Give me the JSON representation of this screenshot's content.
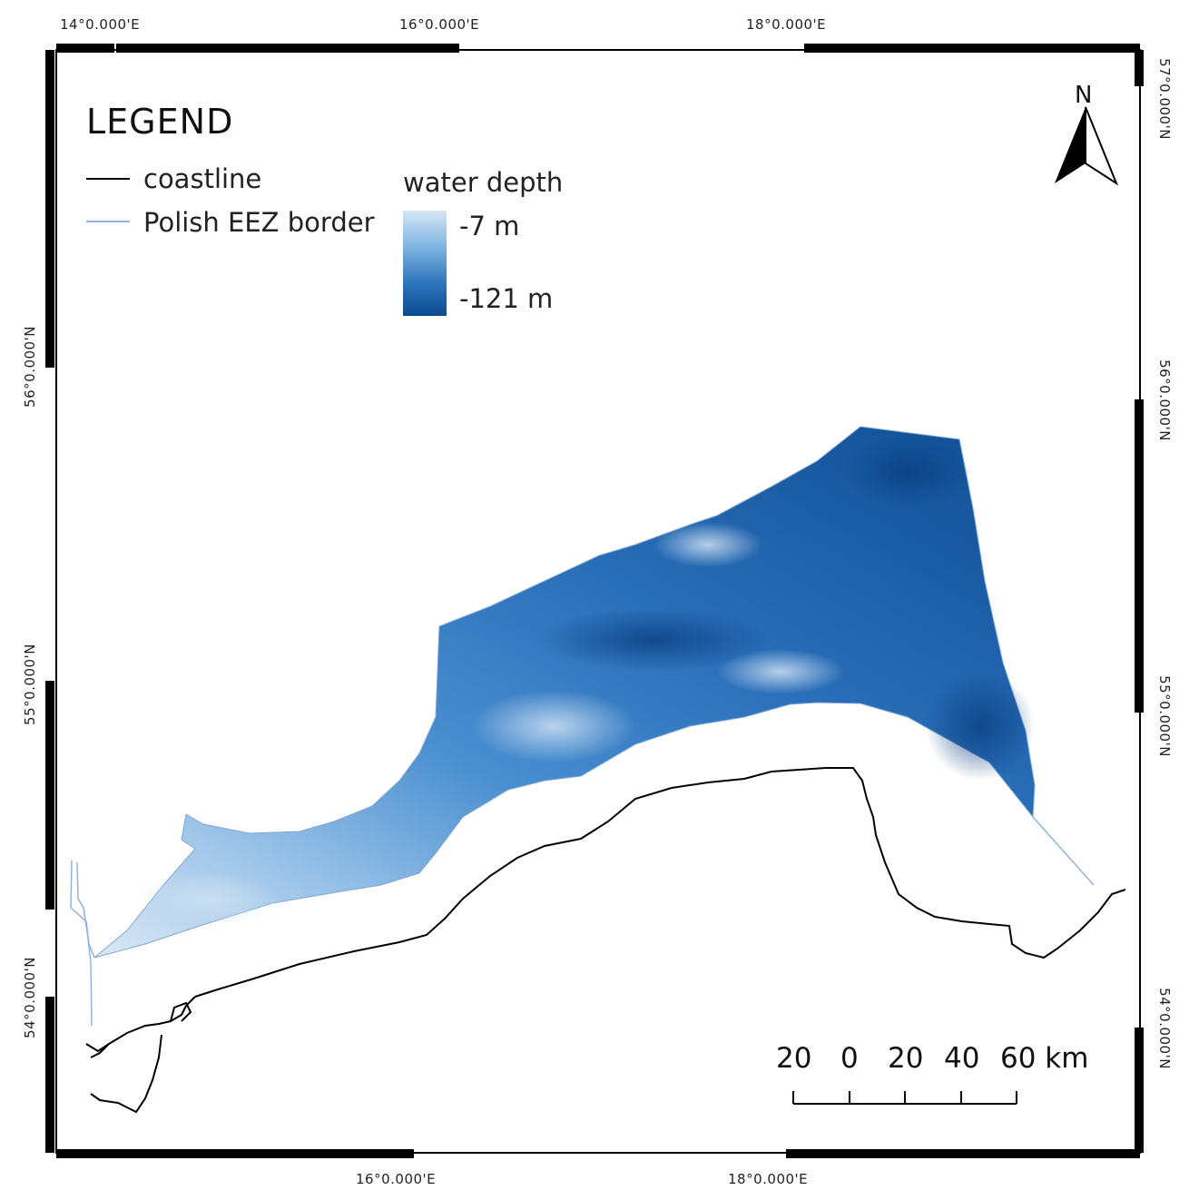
{
  "legend": {
    "title": "LEGEND",
    "items": [
      {
        "label": "coastline",
        "color": "#000000"
      },
      {
        "label": "Polish EEZ border",
        "color": "#8fb3d9"
      }
    ],
    "depth": {
      "title": "water depth",
      "max_label": "-7 m",
      "min_label": "-121 m",
      "color_shallow": "#d6e6f4",
      "color_deep": "#0c4a8f"
    }
  },
  "north_arrow": {
    "label": "N"
  },
  "scale_bar": {
    "labels": [
      "20",
      "0",
      "20",
      "40",
      "60 km"
    ]
  },
  "graticule": {
    "top": [
      "14°0.000'E",
      "16°0.000'E",
      "18°0.000'E"
    ],
    "bottom": [
      "16°0.000'E",
      "18°0.000'E"
    ],
    "left": [
      "56°0.000'N",
      "55°0.000'N",
      "54°0.000'N"
    ],
    "right": [
      "57°0.000'N",
      "56°0.000'N",
      "55°0.000'N",
      "54°0.000'N"
    ]
  }
}
